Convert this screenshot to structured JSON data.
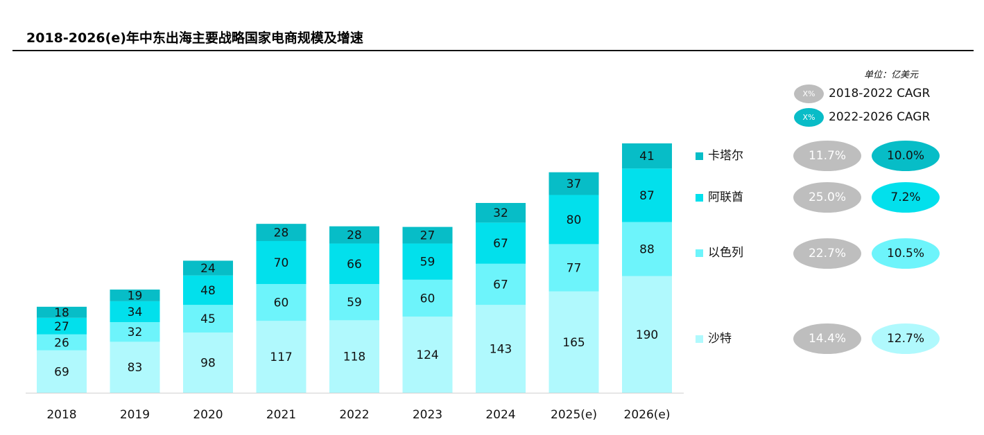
{
  "title": "2018-2026(e)年中东出海主要战略国家电商规模及增速",
  "unit_label": "单位：亿美元",
  "cagr_legend": [
    {
      "marker": "X%",
      "label": "2018-2022 CAGR",
      "color": "#bdbdbd"
    },
    {
      "marker": "X%",
      "label": "2022-2026 CAGR",
      "color": "#09bcc7"
    }
  ],
  "colors": {
    "卡塔尔": "#07bdc7",
    "阿联酋": "#02e0ec",
    "以色列": "#6df4fb",
    "沙特": "#b0f9fd",
    "cagr_grey": "#bebebe"
  },
  "series_legend": [
    {
      "name": "卡塔尔",
      "cagr_2018_2022": "11.7%",
      "cagr_2022_2026": "10.0%"
    },
    {
      "name": "阿联酋",
      "cagr_2018_2022": "25.0%",
      "cagr_2022_2026": "7.2%"
    },
    {
      "name": "以色列",
      "cagr_2018_2022": "22.7%",
      "cagr_2022_2026": "10.5%"
    },
    {
      "name": "沙特",
      "cagr_2018_2022": "14.4%",
      "cagr_2022_2026": "12.7%"
    }
  ],
  "chart_data": {
    "type": "bar",
    "stacked": true,
    "title": "2018-2026(e)年中东出海主要战略国家电商规模及增速",
    "ylabel": "",
    "unit": "单位：亿美元",
    "categories": [
      "2018",
      "2019",
      "2020",
      "2021",
      "2022",
      "2023",
      "2024",
      "2025(e)",
      "2026(e)"
    ],
    "series": [
      {
        "name": "沙特",
        "values": [
          69,
          83,
          98,
          117,
          118,
          124,
          143,
          165,
          190
        ]
      },
      {
        "name": "以色列",
        "values": [
          26,
          32,
          45,
          60,
          59,
          60,
          67,
          77,
          88
        ]
      },
      {
        "name": "阿联酋",
        "values": [
          27,
          34,
          48,
          70,
          66,
          59,
          67,
          80,
          87
        ]
      },
      {
        "name": "卡塔尔",
        "values": [
          18,
          19,
          24,
          28,
          28,
          27,
          32,
          37,
          41
        ]
      }
    ],
    "ylim": [
      0,
      406
    ],
    "grid": false,
    "legend": "right"
  }
}
